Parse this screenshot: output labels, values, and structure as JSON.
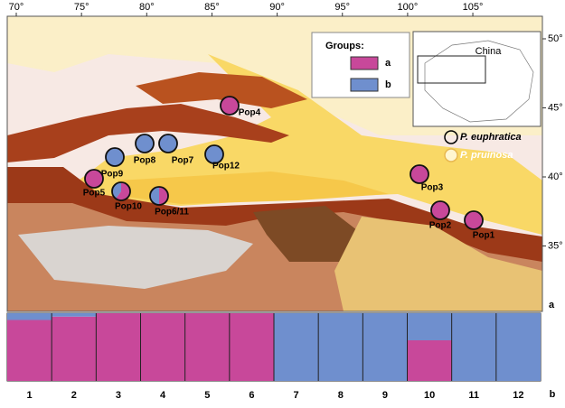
{
  "map": {
    "lon_ticks": [
      {
        "value": 70,
        "label": "70°"
      },
      {
        "value": 75,
        "label": "75°"
      },
      {
        "value": 80,
        "label": "80°"
      },
      {
        "value": 85,
        "label": "85°"
      },
      {
        "value": 90,
        "label": "90°"
      },
      {
        "value": 95,
        "label": "95°"
      },
      {
        "value": 100,
        "label": "100°"
      },
      {
        "value": 105,
        "label": "105°"
      }
    ],
    "lat_ticks": [
      {
        "value": 50,
        "label": "50°"
      },
      {
        "value": 45,
        "label": "45°"
      },
      {
        "value": 40,
        "label": "40°"
      },
      {
        "value": 35,
        "label": "35°"
      }
    ],
    "panel_label": "a",
    "inset_label": "China",
    "legend": {
      "title": "Groups:",
      "groups": [
        {
          "name": "a",
          "color": "#c8489a"
        },
        {
          "name": "b",
          "color": "#6f8fce"
        }
      ]
    },
    "species": [
      {
        "name": "P. euphratica"
      },
      {
        "name": "P. pruinosa"
      }
    ],
    "populations": [
      {
        "name": "Pop4",
        "shares": [
          1,
          0
        ]
      },
      {
        "name": "Pop9",
        "shares": [
          0,
          1
        ]
      },
      {
        "name": "Pop8",
        "shares": [
          0,
          1
        ]
      },
      {
        "name": "Pop7",
        "shares": [
          0,
          1
        ]
      },
      {
        "name": "Pop12",
        "shares": [
          0,
          1
        ]
      },
      {
        "name": "Pop5",
        "shares": [
          1,
          0
        ]
      },
      {
        "name": "Pop10",
        "shares": [
          0.6,
          0.4
        ]
      },
      {
        "name": "Pop6/11",
        "shares": [
          0.5,
          0.5
        ]
      },
      {
        "name": "Pop3",
        "shares": [
          1,
          0
        ]
      },
      {
        "name": "Pop2",
        "shares": [
          1,
          0
        ]
      },
      {
        "name": "Pop1",
        "shares": [
          1,
          0
        ]
      }
    ]
  },
  "structure": {
    "panel_label": "b",
    "clusters": [
      {
        "label": "1",
        "shares": [
          0.9,
          0.1
        ]
      },
      {
        "label": "2",
        "shares": [
          0.95,
          0.05
        ]
      },
      {
        "label": "3",
        "shares": [
          1,
          0
        ]
      },
      {
        "label": "4",
        "shares": [
          1,
          0
        ]
      },
      {
        "label": "5",
        "shares": [
          1,
          0
        ]
      },
      {
        "label": "6",
        "shares": [
          1,
          0
        ]
      },
      {
        "label": "7",
        "shares": [
          0,
          1
        ]
      },
      {
        "label": "8",
        "shares": [
          0,
          1
        ]
      },
      {
        "label": "9",
        "shares": [
          0,
          1
        ]
      },
      {
        "label": "10",
        "shares": [
          0.6,
          0.4
        ]
      },
      {
        "label": "11",
        "shares": [
          0,
          1
        ]
      },
      {
        "label": "12",
        "shares": [
          0,
          1
        ]
      }
    ]
  }
}
